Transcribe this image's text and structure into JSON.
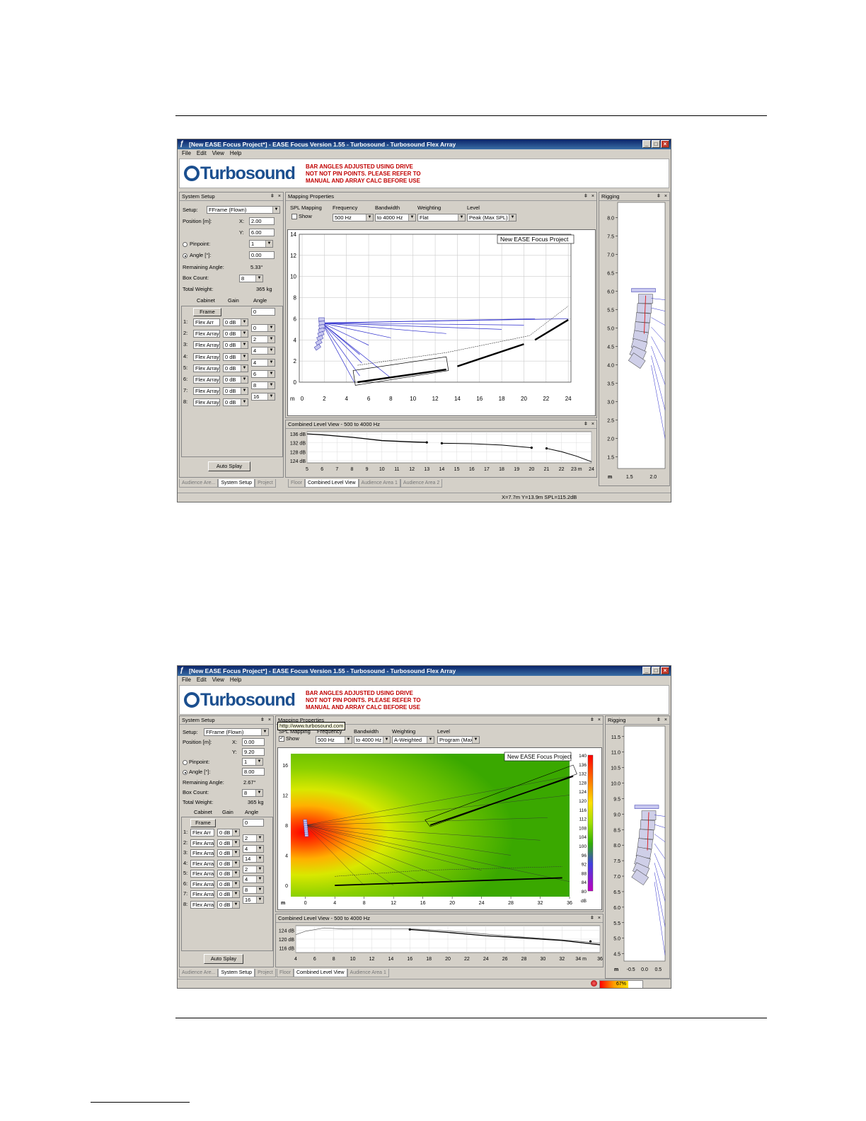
{
  "windows": [
    {
      "title": "[New EASE Focus Project*] - EASE Focus Version 1.55 - Turbosound - Turbosound Flex Array",
      "menu": [
        "File",
        "Edit",
        "View",
        "Help"
      ],
      "banner": {
        "logo": "Turbosound",
        "notice": "BAR ANGLES ADJUSTED USING DRIVE\nNOT NOT PIN POINTS. PLEASE REFER TO\nMANUAL AND ARRAY CALC BEFORE USE"
      },
      "system_setup": {
        "header": "System Setup",
        "setup_label": "Setup:",
        "setup_value": "FFrame (Flown)",
        "position_label": "Position [m]:",
        "x_label": "X:",
        "x_value": "2.00",
        "y_label": "Y:",
        "y_value": "6.00",
        "pinpoint_label": "Pinpoint:",
        "pinpoint_value": "1",
        "angle_label": "Angle [°]:",
        "angle_value": "0.00",
        "remaining_label": "Remaining Angle:",
        "remaining_value": "5.33°",
        "boxcount_label": "Box Count:",
        "boxcount_value": "8",
        "weight_label": "Total Weight:",
        "weight_value": "365 kg",
        "col_cabinet": "Cabinet",
        "col_gain": "Gain",
        "col_angle": "Angle",
        "frame_label": "Frame",
        "frame_angle": "0",
        "rows": [
          {
            "n": "1:",
            "cab": "Flex Arr",
            "gain": "0 dB",
            "angle": "0"
          },
          {
            "n": "2:",
            "cab": "Flex Array",
            "gain": "0 dB",
            "angle": "2"
          },
          {
            "n": "3:",
            "cab": "Flex Array",
            "gain": "0 dB",
            "angle": "4"
          },
          {
            "n": "4:",
            "cab": "Flex Array",
            "gain": "0 dB",
            "angle": "4"
          },
          {
            "n": "5:",
            "cab": "Flex Array",
            "gain": "0 dB",
            "angle": "6"
          },
          {
            "n": "6:",
            "cab": "Flex Array",
            "gain": "0 dB",
            "angle": "8"
          },
          {
            "n": "7:",
            "cab": "Flex Array",
            "gain": "0 dB",
            "angle": "16"
          },
          {
            "n": "8:",
            "cab": "Flex Array",
            "gain": "0 dB",
            "angle": ""
          }
        ],
        "autosplay": "Auto Splay",
        "tabs": [
          "Audience Are...",
          "System Setup",
          "Project"
        ]
      },
      "mapping": {
        "header": "Mapping Properties",
        "spl_label": "SPL Mapping",
        "show_label": "Show",
        "show_checked": false,
        "freq_label": "Frequency",
        "freq_value": "500 Hz",
        "bw_label": "Bandwidth",
        "bw_value": "to 4000 Hz",
        "weight_label": "Weighting",
        "weight_value": "Flat",
        "level_label": "Level",
        "level_value": "Peak (Max SPL)",
        "project_label": "New EASE Focus Project",
        "tooltip": "",
        "xunit": "m",
        "xticks": [
          "0",
          "2",
          "4",
          "6",
          "8",
          "10",
          "12",
          "14",
          "16",
          "18",
          "20",
          "22",
          "24"
        ],
        "yticks": [
          "0",
          "2",
          "4",
          "6",
          "8",
          "10",
          "12",
          "14"
        ],
        "colorbar": [],
        "tabs": [
          "Floor",
          "Combined Level View",
          "Audience Area 1",
          "Audience Area 2"
        ]
      },
      "combined": {
        "header": "Combined Level View - 500 to 4000 Hz",
        "yticks": [
          "124 dB",
          "128 dB",
          "132 dB",
          "136 dB"
        ],
        "xticks": [
          "5",
          "6",
          "7",
          "8",
          "9",
          "10",
          "11",
          "12",
          "13",
          "14",
          "15",
          "16",
          "17",
          "18",
          "19",
          "20",
          "21",
          "22",
          "23 m",
          "24"
        ]
      },
      "rigging": {
        "header": "Rigging",
        "yticks": [
          "1.5",
          "2.0",
          "2.5",
          "3.0",
          "3.5",
          "4.0",
          "4.5",
          "5.0",
          "5.5",
          "6.0",
          "6.5",
          "7.0",
          "7.5",
          "8.0"
        ],
        "xunit": "m",
        "xticks": [
          "1.5",
          "2.0"
        ]
      },
      "status": "X=7.7m Y=13.9m SPL=115.2dB",
      "progress_text": "",
      "colors": {
        "title": "#0a246a",
        "accent": "#c00000",
        "logo": "#1b4f8f"
      }
    },
    {
      "title": "[New EASE Focus Project*] - EASE Focus Version 1.55 - Turbosound - Turbosound Flex Array",
      "menu": [
        "File",
        "Edit",
        "View",
        "Help"
      ],
      "banner": {
        "logo": "Turbosound",
        "notice": "BAR ANGLES ADJUSTED USING DRIVE\nNOT NOT PIN POINTS. PLEASE REFER TO\nMANUAL AND ARRAY CALC BEFORE USE"
      },
      "system_setup": {
        "header": "System Setup",
        "setup_label": "Setup:",
        "setup_value": "FFrame (Flown)",
        "position_label": "Position [m]:",
        "x_label": "X:",
        "x_value": "0.00",
        "y_label": "Y:",
        "y_value": "9.20",
        "pinpoint_label": "Pinpoint:",
        "pinpoint_value": "1",
        "angle_label": "Angle [°]:",
        "angle_value": "8.00",
        "remaining_label": "Remaining Angle:",
        "remaining_value": "2.67°",
        "boxcount_label": "Box Count:",
        "boxcount_value": "8",
        "weight_label": "Total Weight:",
        "weight_value": "365 kg",
        "col_cabinet": "Cabinet",
        "col_gain": "Gain",
        "col_angle": "Angle",
        "frame_label": "Frame",
        "frame_angle": "0",
        "rows": [
          {
            "n": "1:",
            "cab": "Flex Arr",
            "gain": "0 dB",
            "angle": "2"
          },
          {
            "n": "2:",
            "cab": "Flex Array",
            "gain": "0 dB",
            "angle": "4"
          },
          {
            "n": "3:",
            "cab": "Flex Array",
            "gain": "0 dB",
            "angle": "14"
          },
          {
            "n": "4:",
            "cab": "Flex Array",
            "gain": "0 dB",
            "angle": "2"
          },
          {
            "n": "5:",
            "cab": "Flex Array",
            "gain": "0 dB",
            "angle": "4"
          },
          {
            "n": "6:",
            "cab": "Flex Array",
            "gain": "0 dB",
            "angle": "8"
          },
          {
            "n": "7:",
            "cab": "Flex Array",
            "gain": "0 dB",
            "angle": "16"
          },
          {
            "n": "8:",
            "cab": "Flex Array",
            "gain": "0 dB",
            "angle": ""
          }
        ],
        "autosplay": "Auto Splay",
        "tabs": [
          "Audience Are...",
          "System Setup",
          "Project"
        ]
      },
      "mapping": {
        "header": "Mapping Properties",
        "spl_label": "SPL Mapping",
        "show_label": "Show",
        "show_checked": true,
        "freq_label": "Frequency",
        "freq_value": "500 Hz",
        "bw_label": "Bandwidth",
        "bw_value": "to 4000 Hz",
        "weight_label": "Weighting",
        "weight_value": "A-Weighted",
        "level_label": "Level",
        "level_value": "Program (Max SF",
        "project_label": "New EASE Focus Project",
        "tooltip": "http://www.turbosound.com",
        "xunit": "m",
        "xticks": [
          "0",
          "4",
          "8",
          "12",
          "16",
          "20",
          "24",
          "28",
          "32",
          "36"
        ],
        "yticks": [
          "0",
          "4",
          "8",
          "12",
          "16"
        ],
        "colorbar": [
          "140",
          "136",
          "132",
          "128",
          "124",
          "120",
          "116",
          "112",
          "108",
          "104",
          "100",
          "96",
          "92",
          "88",
          "84",
          "80",
          "dB"
        ],
        "tabs": [
          "Floor",
          "Combined Level View",
          "Audience Area 1"
        ]
      },
      "combined": {
        "header": "Combined Level View - 500 to 4000 Hz",
        "yticks": [
          "116 dB",
          "120 dB",
          "124 dB"
        ],
        "xticks": [
          "4",
          "6",
          "8",
          "10",
          "12",
          "14",
          "16",
          "18",
          "20",
          "22",
          "24",
          "26",
          "28",
          "30",
          "32",
          "34 m",
          "36"
        ]
      },
      "rigging": {
        "header": "Rigging",
        "yticks": [
          "4.5",
          "5.0",
          "5.5",
          "6.0",
          "6.5",
          "7.0",
          "7.5",
          "8.0",
          "8.5",
          "9.0",
          "9.5",
          "10.0",
          "10.5",
          "11.0",
          "11.5"
        ],
        "xunit": "m",
        "xticks": [
          "-0.5",
          "0.0",
          "0.5"
        ]
      },
      "status": "",
      "progress_text": "67%",
      "progress_fraction": 0.67,
      "colors": {
        "title": "#0a246a",
        "accent": "#c00000",
        "logo": "#1b4f8f"
      }
    }
  ]
}
